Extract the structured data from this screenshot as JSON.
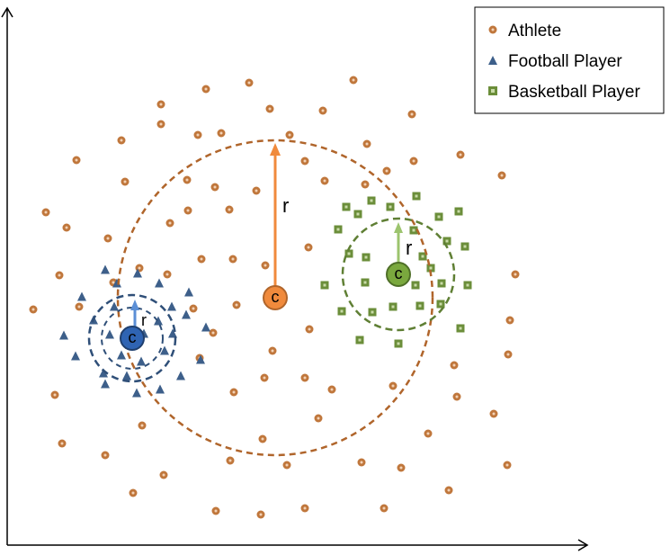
{
  "legend": {
    "items": [
      {
        "label": "Athlete",
        "marker": "circle",
        "color": "#c0773c"
      },
      {
        "label": "Football Player",
        "marker": "triangle",
        "color": "#3d5f8a"
      },
      {
        "label": "Basketball Player",
        "marker": "square",
        "color": "#6b8e3a"
      }
    ]
  },
  "clusters": [
    {
      "name": "athlete",
      "center_label": "c",
      "radius_label": "r",
      "fill": "#f08a3c",
      "ring": "#b0652b",
      "arrow": "#f08a3c"
    },
    {
      "name": "football",
      "center_label": "c",
      "radius_label": "r",
      "fill": "#2f64b3",
      "ring": "#2f4f78",
      "arrow": "#5b8fd6"
    },
    {
      "name": "basketball",
      "center_label": "c",
      "radius_label": "r",
      "fill": "#7aa83e",
      "ring": "#5f7f34",
      "arrow": "#9cc46e"
    }
  ],
  "colors": {
    "athlete_dot": "#c0773c",
    "football_triangle": "#3d5f8a",
    "basketball_square": "#6b8e3a",
    "axis": "#000000"
  }
}
